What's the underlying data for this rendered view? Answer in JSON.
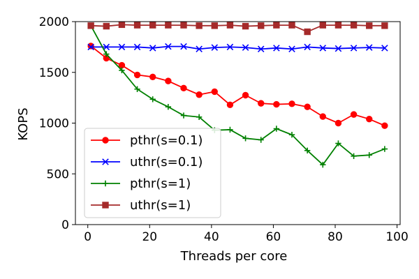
{
  "chart_data": {
    "type": "line",
    "xlabel": "Threads per core",
    "ylabel": "KOPS",
    "xlim": [
      -4,
      101
    ],
    "ylim": [
      0,
      2000
    ],
    "x_ticks": [
      "0",
      "20",
      "40",
      "60",
      "80",
      "100"
    ],
    "y_ticks": [
      "0",
      "500",
      "1000",
      "1500",
      "2000"
    ],
    "grid": false,
    "legend_position": "lower-left",
    "x": [
      1,
      6,
      11,
      16,
      21,
      26,
      31,
      36,
      41,
      46,
      51,
      56,
      61,
      66,
      71,
      76,
      81,
      86,
      91,
      96
    ],
    "series": [
      {
        "name": "pthr(s=0.1)",
        "color": "#ff0000",
        "marker": "circle",
        "values": [
          1760,
          1640,
          1570,
          1475,
          1455,
          1415,
          1345,
          1280,
          1310,
          1180,
          1275,
          1195,
          1185,
          1190,
          1160,
          1065,
          1000,
          1085,
          1040,
          975
        ]
      },
      {
        "name": "uthr(s=0.1)",
        "color": "#0000ff",
        "marker": "x",
        "values": [
          1750,
          1750,
          1750,
          1750,
          1740,
          1755,
          1755,
          1730,
          1745,
          1750,
          1745,
          1730,
          1740,
          1730,
          1750,
          1740,
          1735,
          1740,
          1745,
          1740
        ]
      },
      {
        "name": "pthr(s=1)",
        "color": "#008000",
        "marker": "plus",
        "values": [
          1960,
          1680,
          1520,
          1335,
          1235,
          1160,
          1075,
          1060,
          930,
          935,
          850,
          835,
          945,
          885,
          730,
          590,
          800,
          675,
          685,
          745
        ]
      },
      {
        "name": "uthr(s=1)",
        "color": "#a52a2a",
        "marker": "square",
        "values": [
          1960,
          1955,
          1970,
          1965,
          1965,
          1965,
          1965,
          1960,
          1960,
          1965,
          1955,
          1960,
          1965,
          1965,
          1900,
          1965,
          1965,
          1965,
          1960,
          1960
        ]
      }
    ]
  }
}
